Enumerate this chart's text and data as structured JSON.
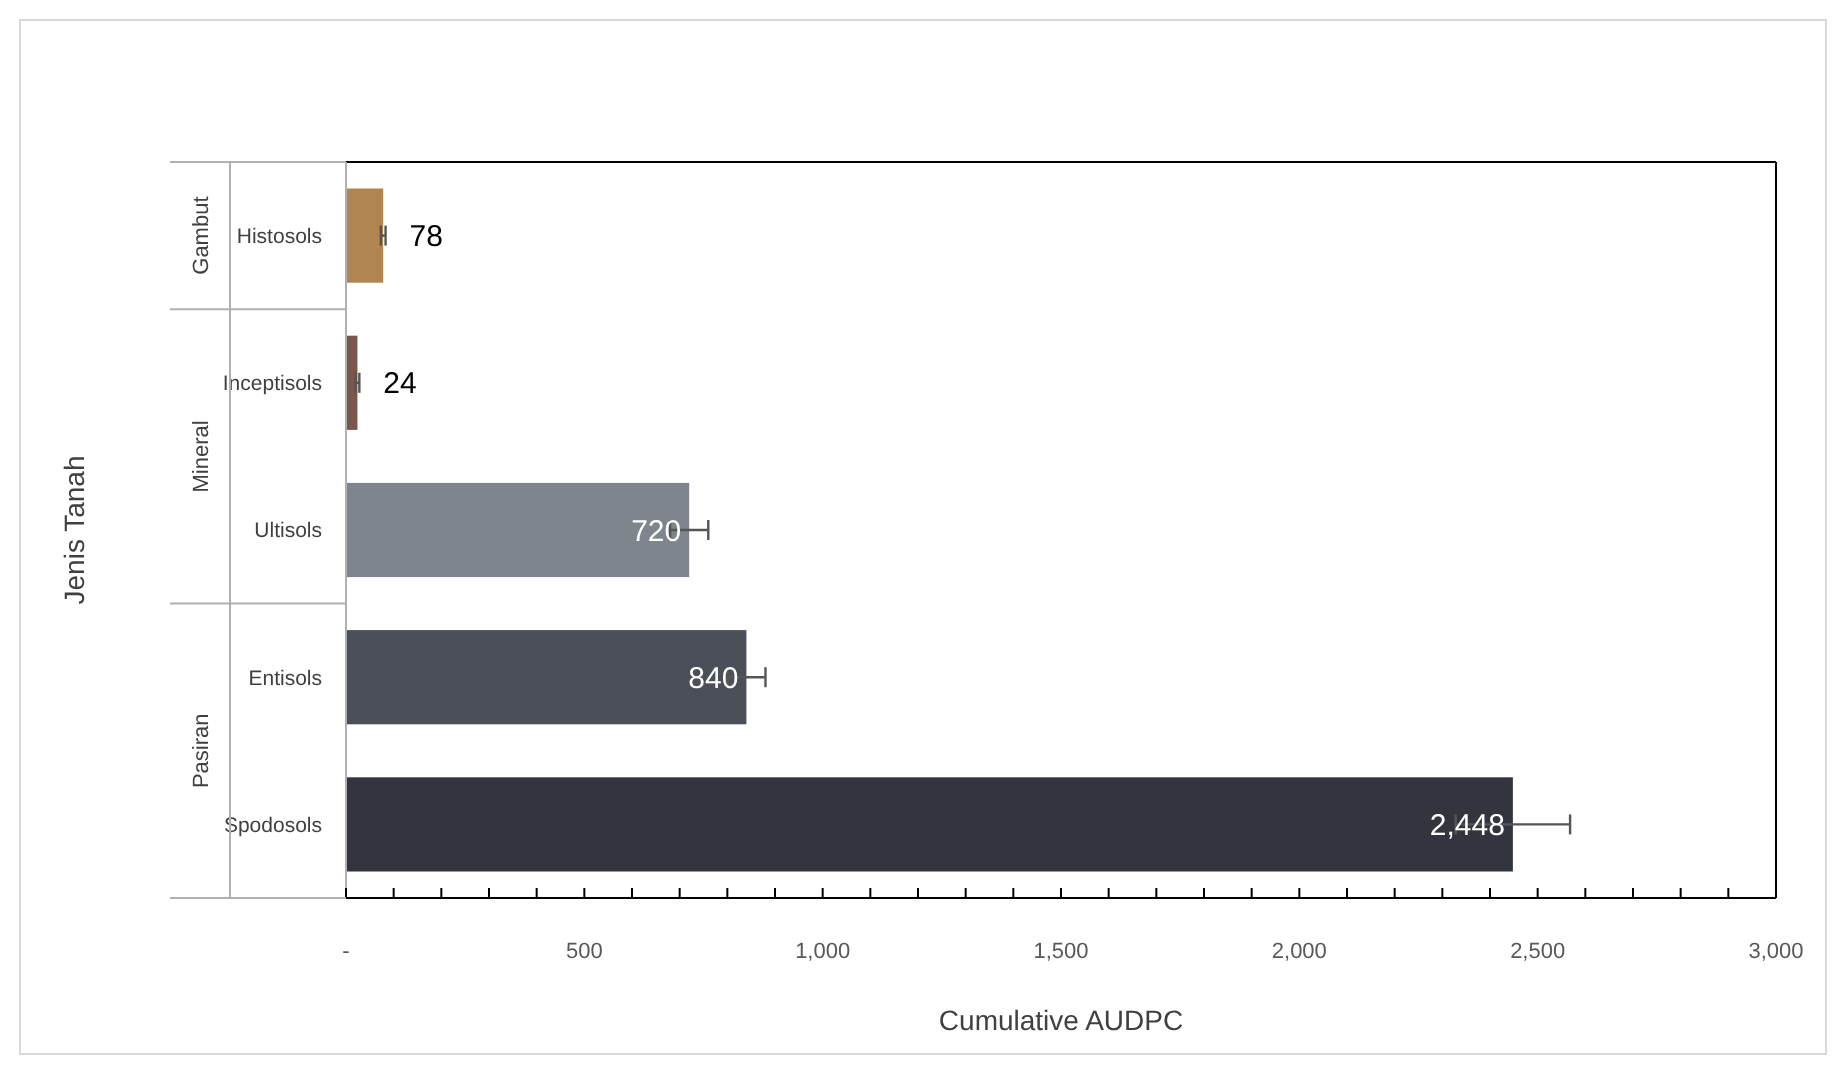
{
  "chart_data": {
    "type": "bar",
    "orientation": "horizontal",
    "ylabel": "Jenis Tanah",
    "xlabel": "Cumulative AUDPC",
    "categories": [
      "Histosols",
      "Inceptisols",
      "Ultisols",
      "Entisols",
      "Spodosols"
    ],
    "values": [
      78,
      24,
      720,
      840,
      2448
    ],
    "colors": [
      "#b08552",
      "#7a574a",
      "#7e858c",
      "#4b4f58",
      "#32353e"
    ],
    "errors": [
      5,
      4,
      40,
      40,
      120
    ],
    "value_labels": [
      "78",
      "24",
      "720",
      "840",
      "2,448"
    ],
    "xlim": [
      0,
      3000
    ],
    "xticks": [
      {
        "value": 0,
        "label": "-"
      },
      {
        "value": 100,
        "label": null
      },
      {
        "value": 200,
        "label": null
      },
      {
        "value": 300,
        "label": null
      },
      {
        "value": 400,
        "label": null
      },
      {
        "value": 500,
        "label": "500"
      },
      {
        "value": 600,
        "label": null
      },
      {
        "value": 700,
        "label": null
      },
      {
        "value": 800,
        "label": null
      },
      {
        "value": 900,
        "label": null
      },
      {
        "value": 1000,
        "label": "1,000"
      },
      {
        "value": 1100,
        "label": null
      },
      {
        "value": 1200,
        "label": null
      },
      {
        "value": 1300,
        "label": null
      },
      {
        "value": 1400,
        "label": null
      },
      {
        "value": 1500,
        "label": "1,500"
      },
      {
        "value": 1600,
        "label": null
      },
      {
        "value": 1700,
        "label": null
      },
      {
        "value": 1800,
        "label": null
      },
      {
        "value": 1900,
        "label": null
      },
      {
        "value": 2000,
        "label": "2,000"
      },
      {
        "value": 2100,
        "label": null
      },
      {
        "value": 2200,
        "label": null
      },
      {
        "value": 2300,
        "label": null
      },
      {
        "value": 2400,
        "label": null
      },
      {
        "value": 2500,
        "label": "2,500"
      },
      {
        "value": 2600,
        "label": null
      },
      {
        "value": 2700,
        "label": null
      },
      {
        "value": 2800,
        "label": null
      },
      {
        "value": 2900,
        "label": null
      },
      {
        "value": 3000,
        "label": "3,000"
      }
    ],
    "annotations": [
      "Gambut",
      "Mineral",
      "Pasiran"
    ]
  }
}
